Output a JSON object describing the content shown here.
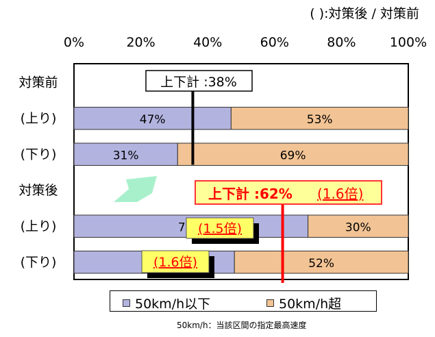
{
  "chart_data": {
    "type": "bar",
    "orientation": "horizontal",
    "stacked": true,
    "note_top": "( ):対策後 / 対策前",
    "x_ticks": [
      "0%",
      "20%",
      "40%",
      "60%",
      "80%",
      "100%"
    ],
    "xlim": [
      0,
      100
    ],
    "rows": [
      {
        "label": "対策前",
        "kind": "header",
        "annotation": "上下計 :38%",
        "summary_value": 38
      },
      {
        "label": "(上り)",
        "kind": "bar",
        "values": [
          47,
          53
        ],
        "labels": [
          "47%",
          "53%"
        ]
      },
      {
        "label": "(下り)",
        "kind": "bar",
        "values": [
          31,
          69
        ],
        "labels": [
          "31%",
          "69%"
        ]
      },
      {
        "label": "対策後",
        "kind": "header",
        "annotation_main": "上下計 :62%",
        "annotation_ratio": "(1.6倍)",
        "summary_value": 62
      },
      {
        "label": "(上り)",
        "kind": "bar",
        "values": [
          70,
          30
        ],
        "labels": [
          "70%",
          "30%"
        ],
        "ratio": "(1.5倍)"
      },
      {
        "label": "(下り)",
        "kind": "bar",
        "values": [
          48,
          52
        ],
        "labels": [
          "48%",
          "52%"
        ],
        "ratio": "(1.6倍)"
      }
    ],
    "series": [
      {
        "name": "50km/h以下",
        "color": "#b3b3e0"
      },
      {
        "name": "50km/h超",
        "color": "#f2c394"
      }
    ],
    "footnote": "50km/h：当該区間の指定最高速度"
  }
}
